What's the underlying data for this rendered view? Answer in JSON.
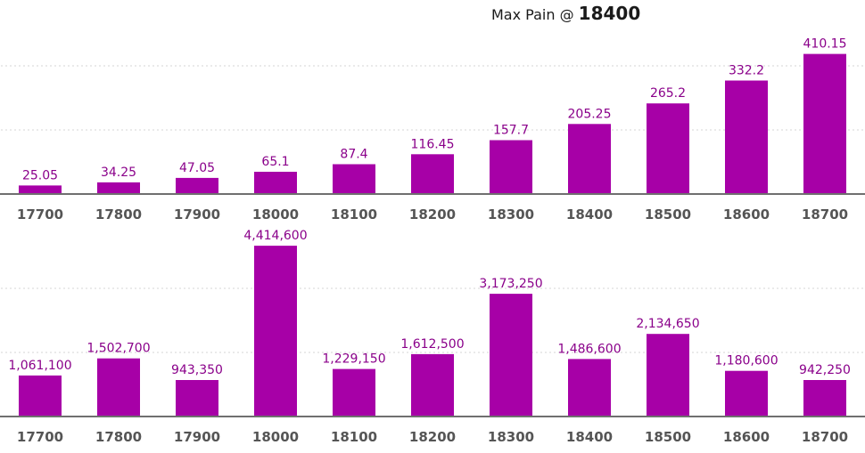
{
  "title": {
    "prefix": "Max Pain @ ",
    "value": "18400"
  },
  "chart_data": [
    {
      "type": "bar",
      "categories": [
        "17700",
        "17800",
        "17900",
        "18000",
        "18100",
        "18200",
        "18300",
        "18400",
        "18500",
        "18600",
        "18700"
      ],
      "values": [
        25.05,
        34.25,
        47.05,
        65.1,
        87.4,
        116.45,
        157.7,
        205.25,
        265.2,
        332.2,
        410.15
      ],
      "value_labels": [
        "25.05",
        "34.25",
        "47.05",
        "65.1",
        "87.4",
        "116.45",
        "157.7",
        "205.25",
        "265.2",
        "332.2",
        "410.15"
      ],
      "ylim": [
        0,
        490
      ],
      "grid": true,
      "color": "#a700a7"
    },
    {
      "type": "bar",
      "categories": [
        "17700",
        "17800",
        "17900",
        "18000",
        "18100",
        "18200",
        "18300",
        "18400",
        "18500",
        "18600",
        "18700"
      ],
      "values": [
        1061100,
        1502700,
        943350,
        4414600,
        1229150,
        1612500,
        3173250,
        1486600,
        2134650,
        1180600,
        942250
      ],
      "value_labels": [
        "1,061,100",
        "1,502,700",
        "943,350",
        "4,414,600",
        "1,229,150",
        "1,612,500",
        "3,173,250",
        "1,486,600",
        "2,134,650",
        "1,180,600",
        "942,250"
      ],
      "ylim": [
        0,
        4900000
      ],
      "grid": true,
      "color": "#a700a7"
    }
  ]
}
